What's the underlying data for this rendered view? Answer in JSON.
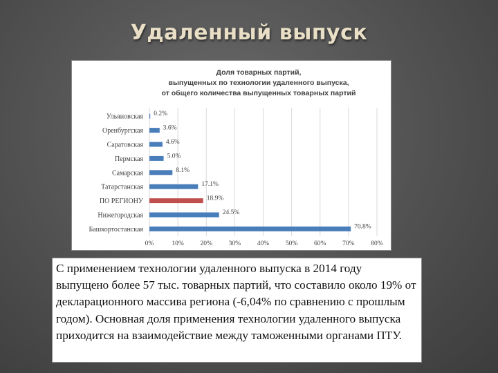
{
  "slide": {
    "title": "Удаленный выпуск",
    "body_text": "С применением технологии удаленного выпуска в 2014 году выпущено более 57 тыс. товарных партий, что составило около 19% от декларационного массива региона (-6,04% по сравнению с прошлым годом). Основная доля применения технологии удаленного выпуска приходится на взаимодействие между таможенными органами ПТУ."
  },
  "chart_data": {
    "type": "bar",
    "orientation": "horizontal",
    "title_lines": [
      "Доля товарных партий,",
      "выпущенных по технологии удаленного выпуска,",
      "от общего количества выпущенных товарных партий"
    ],
    "categories": [
      "Ульяновская",
      "Оренбургская",
      "Саратовская",
      "Пермская",
      "Самарская",
      "Татарстанская",
      "ПО РЕГИОНУ",
      "Нижегородская",
      "Башкортостанская"
    ],
    "values": [
      0.2,
      3.6,
      4.6,
      5.0,
      8.1,
      17.1,
      18.9,
      24.5,
      70.8
    ],
    "value_labels": [
      "0.2%",
      "3.6%",
      "4.6%",
      "5.0%",
      "8.1%",
      "17.1%",
      "18.9%",
      "24.5%",
      "70.8%"
    ],
    "highlight_category": "ПО РЕГИОНУ",
    "xlim": [
      0,
      80
    ],
    "xticks": [
      "0%",
      "10%",
      "20%",
      "30%",
      "40%",
      "50%",
      "60%",
      "70%",
      "80%"
    ],
    "grid": true,
    "colors": {
      "bar": "#4a7ebb",
      "highlight": "#c0504d",
      "grid": "#d9d9d9"
    }
  }
}
